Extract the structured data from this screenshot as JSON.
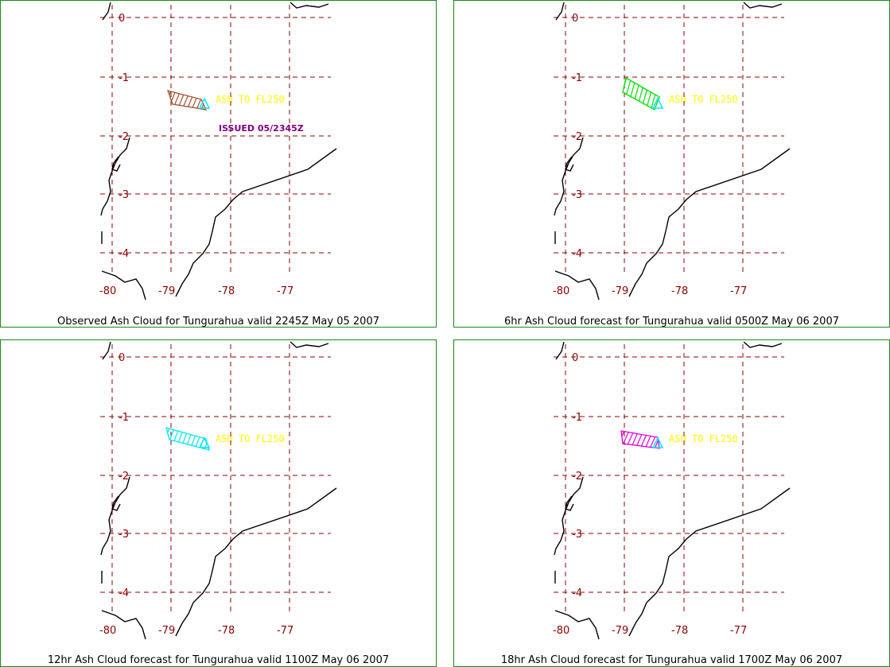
{
  "map_data": {
    "lat_labels": [
      "0",
      "-1",
      "-2",
      "-3",
      "-4"
    ],
    "lon_labels": [
      "-80",
      "-79",
      "-78",
      "-77"
    ],
    "ash_label": "ASH TO FL250",
    "ash_label_color": "#ffff00",
    "grid_color": "#8b0000",
    "border_color": "#1a8a1a",
    "vent_color": "#00e5ff"
  },
  "panels": [
    {
      "caption": "Observed Ash Cloud for Tungurahua valid 2245Z May 05 2007",
      "cloud_color": "#a0522d",
      "issued": "ISSUED 05/2345Z",
      "issued_color": "#800080"
    },
    {
      "caption": "6hr Ash Cloud forecast for Tungurahua valid 0500Z May 06 2007",
      "cloud_color": "#00dd00"
    },
    {
      "caption": "12hr Ash Cloud forecast for Tungurahua valid 1100Z May 06 2007",
      "cloud_color": "#00e5ff"
    },
    {
      "caption": "18hr Ash Cloud forecast for Tungurahua valid 1700Z May 06 2007",
      "cloud_color": "#dd00dd"
    }
  ]
}
